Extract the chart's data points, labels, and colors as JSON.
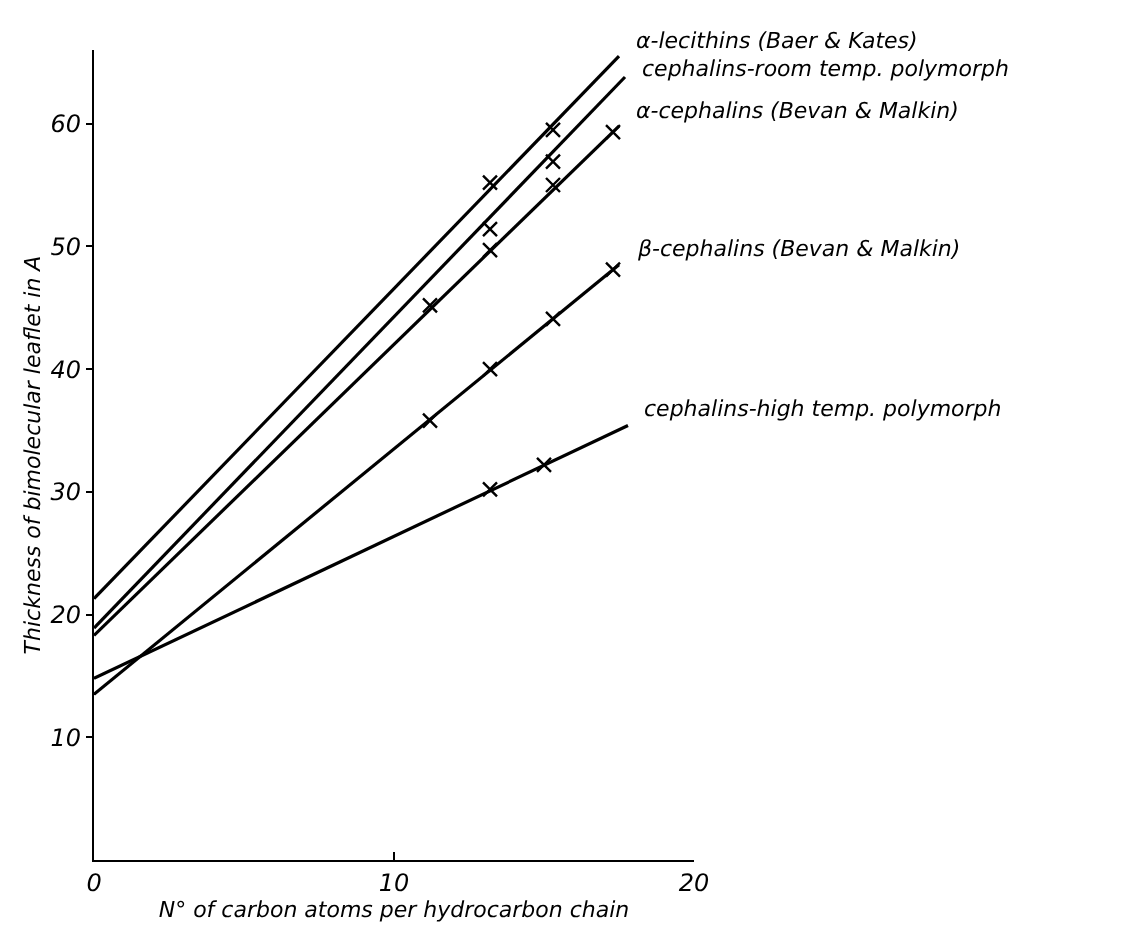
{
  "chart_data": {
    "type": "line",
    "xlabel": "N° of carbon atoms per hydrocarbon chain",
    "ylabel": "Thickness of bimolecular leaflet in A",
    "xlim": [
      0,
      20
    ],
    "xticks": [
      0,
      10,
      20
    ],
    "ylim": [
      0,
      66
    ],
    "yticks": [
      10,
      20,
      30,
      40,
      50,
      60
    ],
    "series": [
      {
        "name": "α-lecithins (Baer & Kates)",
        "marker": "none",
        "color": "#000000",
        "x": [
          0,
          17.5
        ],
        "values": [
          21.3,
          65.5
        ]
      },
      {
        "name": "cephalins-room temp. polymorph",
        "marker": "none",
        "color": "#000000",
        "x": [
          0,
          17.7
        ],
        "values": [
          18.9,
          63.8
        ]
      },
      {
        "name": "α-cephalins (Bevan & Malkin)",
        "marker": "none",
        "color": "#000000",
        "x": [
          0,
          17.5
        ],
        "values": [
          18.3,
          59.8
        ]
      },
      {
        "name": "β-cephalins (Bevan & Malkin)",
        "marker": "none",
        "color": "#000000",
        "x": [
          0,
          17.5
        ],
        "values": [
          13.5,
          48.5
        ]
      },
      {
        "name": "cephalins-high temp. polymorph",
        "marker": "none",
        "color": "#000000",
        "x": [
          0,
          17.8
        ],
        "values": [
          14.8,
          35.4
        ]
      },
      {
        "type": "scatter",
        "marker": "cross",
        "color": "#000000",
        "x": [
          13.2,
          15.3
        ],
        "values": [
          55.2,
          59.5
        ]
      },
      {
        "type": "scatter",
        "marker": "cross",
        "color": "#000000",
        "x": [
          13.2,
          15.3
        ],
        "values": [
          51.4,
          56.9
        ]
      },
      {
        "type": "scatter",
        "marker": "cross",
        "color": "#000000",
        "x": [
          11.2,
          13.2,
          15.3,
          17.3
        ],
        "values": [
          45.2,
          49.7,
          55.0,
          59.3
        ]
      },
      {
        "type": "scatter",
        "marker": "cross",
        "color": "#000000",
        "x": [
          11.2,
          13.2,
          15.3,
          17.3
        ],
        "values": [
          35.8,
          40.0,
          44.1,
          48.1
        ]
      },
      {
        "type": "scatter",
        "marker": "cross",
        "color": "#000000",
        "x": [
          13.2,
          15.0
        ],
        "values": [
          30.2,
          32.2
        ]
      }
    ]
  }
}
